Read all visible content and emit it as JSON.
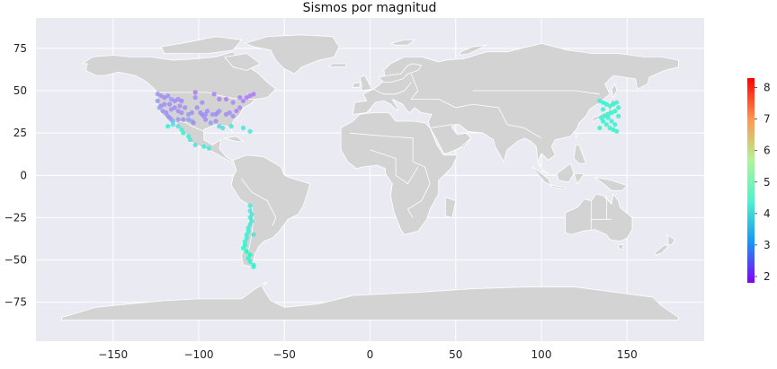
{
  "chart_data": {
    "type": "scatter",
    "title": "Sismos por magnitud",
    "xlabel": "",
    "ylabel": "",
    "xlim": [
      -195,
      195
    ],
    "ylim": [
      -98,
      93
    ],
    "xticks": [
      -150,
      -100,
      -50,
      0,
      50,
      100,
      150
    ],
    "yticks": [
      75,
      50,
      25,
      0,
      -25,
      -50,
      -75
    ],
    "grid": true,
    "background_color": "#eaeaf2",
    "land_color": "#d3d3d3",
    "border_color": "#ffffff",
    "colormap": "rainbow",
    "colorbar": {
      "vmin": 1.8,
      "vmax": 8.3,
      "ticks": [
        2,
        3,
        4,
        5,
        6,
        7,
        8
      ],
      "placement": "right"
    },
    "series": [
      {
        "region": "west-central North America",
        "points": [
          {
            "lon": -124,
            "lat": 48,
            "mag": 3.1
          },
          {
            "lon": -122,
            "lat": 47,
            "mag": 3.0
          },
          {
            "lon": -120,
            "lat": 46,
            "mag": 3.0
          },
          {
            "lon": -118,
            "lat": 47,
            "mag": 3.0
          },
          {
            "lon": -116,
            "lat": 45,
            "mag": 3.1
          },
          {
            "lon": -114,
            "lat": 44,
            "mag": 3.0
          },
          {
            "lon": -112,
            "lat": 45,
            "mag": 3.0
          },
          {
            "lon": -110,
            "lat": 44,
            "mag": 2.9
          },
          {
            "lon": -122,
            "lat": 41,
            "mag": 3.0
          },
          {
            "lon": -121,
            "lat": 38,
            "mag": 3.1
          },
          {
            "lon": -119,
            "lat": 37,
            "mag": 3.0
          },
          {
            "lon": -118,
            "lat": 35,
            "mag": 3.1
          },
          {
            "lon": -117,
            "lat": 34,
            "mag": 3.0
          },
          {
            "lon": -116,
            "lat": 33,
            "mag": 3.2
          },
          {
            "lon": -115,
            "lat": 32,
            "mag": 3.4
          },
          {
            "lon": -116,
            "lat": 39,
            "mag": 3.0
          },
          {
            "lon": -114,
            "lat": 40,
            "mag": 3.0
          },
          {
            "lon": -112,
            "lat": 38,
            "mag": 3.0
          },
          {
            "lon": -111,
            "lat": 41,
            "mag": 3.0
          },
          {
            "lon": -110,
            "lat": 37,
            "mag": 3.0
          },
          {
            "lon": -108,
            "lat": 40,
            "mag": 3.0
          },
          {
            "lon": -106,
            "lat": 36,
            "mag": 3.1
          },
          {
            "lon": -106,
            "lat": 33,
            "mag": 3.2
          },
          {
            "lon": -104,
            "lat": 37,
            "mag": 3.0
          },
          {
            "lon": -104,
            "lat": 32,
            "mag": 3.3
          },
          {
            "lon": -103,
            "lat": 31,
            "mag": 3.0
          },
          {
            "lon": -112,
            "lat": 33,
            "mag": 3.1
          },
          {
            "lon": -109,
            "lat": 33,
            "mag": 3.0
          },
          {
            "lon": -124,
            "lat": 44,
            "mag": 3.1
          },
          {
            "lon": -123,
            "lat": 40,
            "mag": 3.3
          },
          {
            "lon": -120,
            "lat": 42,
            "mag": 3.0
          },
          {
            "lon": -117,
            "lat": 42,
            "mag": 3.0
          }
        ]
      },
      {
        "region": "central and eastern North America",
        "points": [
          {
            "lon": -98,
            "lat": 36,
            "mag": 3.0
          },
          {
            "lon": -97,
            "lat": 35,
            "mag": 3.0
          },
          {
            "lon": -96,
            "lat": 36,
            "mag": 3.1
          },
          {
            "lon": -99,
            "lat": 37,
            "mag": 3.0
          },
          {
            "lon": -96,
            "lat": 33,
            "mag": 3.0
          },
          {
            "lon": -95,
            "lat": 38,
            "mag": 3.0
          },
          {
            "lon": -92,
            "lat": 36,
            "mag": 3.1
          },
          {
            "lon": -90,
            "lat": 36,
            "mag": 3.0
          },
          {
            "lon": -89,
            "lat": 37,
            "mag": 3.0
          },
          {
            "lon": -88,
            "lat": 38,
            "mag": 3.1
          },
          {
            "lon": -84,
            "lat": 36,
            "mag": 3.0
          },
          {
            "lon": -82,
            "lat": 37,
            "mag": 3.0
          },
          {
            "lon": -80,
            "lat": 35,
            "mag": 3.0
          },
          {
            "lon": -78,
            "lat": 38,
            "mag": 2.9
          },
          {
            "lon": -76,
            "lat": 40,
            "mag": 3.0
          },
          {
            "lon": -74,
            "lat": 44,
            "mag": 2.9
          },
          {
            "lon": -72,
            "lat": 46,
            "mag": 2.8
          },
          {
            "lon": -70,
            "lat": 47,
            "mag": 2.8
          },
          {
            "lon": -68,
            "lat": 48,
            "mag": 2.8
          },
          {
            "lon": -76,
            "lat": 46,
            "mag": 2.9
          },
          {
            "lon": -80,
            "lat": 43,
            "mag": 3.0
          },
          {
            "lon": -84,
            "lat": 45,
            "mag": 2.9
          },
          {
            "lon": -88,
            "lat": 45,
            "mag": 2.9
          },
          {
            "lon": -98,
            "lat": 43,
            "mag": 3.0
          },
          {
            "lon": -102,
            "lat": 46,
            "mag": 3.0
          },
          {
            "lon": -101,
            "lat": 40,
            "mag": 3.0
          },
          {
            "lon": -93,
            "lat": 31,
            "mag": 3.2
          },
          {
            "lon": -90,
            "lat": 32,
            "mag": 3.0
          },
          {
            "lon": -102,
            "lat": 49,
            "mag": 2.8
          },
          {
            "lon": -91,
            "lat": 48,
            "mag": 2.9
          }
        ]
      },
      {
        "region": "Mexico and Caribbean",
        "points": [
          {
            "lon": -112,
            "lat": 29,
            "mag": 3.9
          },
          {
            "lon": -110,
            "lat": 27,
            "mag": 4.2
          },
          {
            "lon": -109,
            "lat": 25,
            "mag": 4.5
          },
          {
            "lon": -106,
            "lat": 23,
            "mag": 4.3
          },
          {
            "lon": -105,
            "lat": 21,
            "mag": 4.1
          },
          {
            "lon": -102,
            "lat": 18,
            "mag": 4.0
          },
          {
            "lon": -97,
            "lat": 17,
            "mag": 4.2
          },
          {
            "lon": -94,
            "lat": 16,
            "mag": 4.1
          },
          {
            "lon": -118,
            "lat": 29,
            "mag": 4.4
          },
          {
            "lon": -115,
            "lat": 30,
            "mag": 4.0
          },
          {
            "lon": -86,
            "lat": 28,
            "mag": 4.0
          },
          {
            "lon": -81,
            "lat": 29,
            "mag": 4.1
          },
          {
            "lon": -74,
            "lat": 28,
            "mag": 4.0
          },
          {
            "lon": -70,
            "lat": 26,
            "mag": 4.2
          },
          {
            "lon": -88,
            "lat": 29,
            "mag": 3.8
          }
        ]
      },
      {
        "region": "Chile and Argentina",
        "points": [
          {
            "lon": -70,
            "lat": -18,
            "mag": 4.2
          },
          {
            "lon": -70,
            "lat": -21,
            "mag": 4.1
          },
          {
            "lon": -69,
            "lat": -23,
            "mag": 4.0
          },
          {
            "lon": -70,
            "lat": -25,
            "mag": 4.3
          },
          {
            "lon": -69,
            "lat": -27,
            "mag": 4.2
          },
          {
            "lon": -70,
            "lat": -29,
            "mag": 4.1
          },
          {
            "lon": -71,
            "lat": -31,
            "mag": 4.0
          },
          {
            "lon": -71,
            "lat": -33,
            "mag": 4.4
          },
          {
            "lon": -72,
            "lat": -35,
            "mag": 4.2
          },
          {
            "lon": -72,
            "lat": -37,
            "mag": 4.1
          },
          {
            "lon": -73,
            "lat": -39,
            "mag": 4.3
          },
          {
            "lon": -73,
            "lat": -41,
            "mag": 4.5
          },
          {
            "lon": -74,
            "lat": -43,
            "mag": 4.6
          },
          {
            "lon": -72,
            "lat": -45,
            "mag": 4.7
          },
          {
            "lon": -70,
            "lat": -47,
            "mag": 4.8
          },
          {
            "lon": -71,
            "lat": -49,
            "mag": 4.5
          },
          {
            "lon": -70,
            "lat": -51,
            "mag": 4.4
          },
          {
            "lon": -68,
            "lat": -53,
            "mag": 4.6
          },
          {
            "lon": -68,
            "lat": -54,
            "mag": 4.4
          },
          {
            "lon": -68,
            "lat": -35,
            "mag": 4.0
          }
        ]
      },
      {
        "region": "Japan",
        "points": [
          {
            "lon": 134,
            "lat": 44,
            "mag": 4.2
          },
          {
            "lon": 136,
            "lat": 43,
            "mag": 4.4
          },
          {
            "lon": 138,
            "lat": 42,
            "mag": 4.5
          },
          {
            "lon": 140,
            "lat": 41,
            "mag": 4.3
          },
          {
            "lon": 142,
            "lat": 42,
            "mag": 4.6
          },
          {
            "lon": 144,
            "lat": 43,
            "mag": 4.2
          },
          {
            "lon": 145,
            "lat": 40,
            "mag": 4.4
          },
          {
            "lon": 143,
            "lat": 38,
            "mag": 4.6
          },
          {
            "lon": 141,
            "lat": 37,
            "mag": 4.5
          },
          {
            "lon": 139,
            "lat": 36,
            "mag": 4.3
          },
          {
            "lon": 137,
            "lat": 35,
            "mag": 4.6
          },
          {
            "lon": 135,
            "lat": 34,
            "mag": 4.2
          },
          {
            "lon": 136,
            "lat": 32,
            "mag": 4.5
          },
          {
            "lon": 138,
            "lat": 30,
            "mag": 4.4
          },
          {
            "lon": 140,
            "lat": 28,
            "mag": 4.3
          },
          {
            "lon": 142,
            "lat": 27,
            "mag": 4.6
          },
          {
            "lon": 144,
            "lat": 26,
            "mag": 4.4
          },
          {
            "lon": 143,
            "lat": 30,
            "mag": 4.5
          },
          {
            "lon": 141,
            "lat": 32,
            "mag": 4.2
          },
          {
            "lon": 139,
            "lat": 34,
            "mag": 4.3
          },
          {
            "lon": 145,
            "lat": 35,
            "mag": 4.5
          },
          {
            "lon": 136,
            "lat": 39,
            "mag": 4.2
          },
          {
            "lon": 134,
            "lat": 28,
            "mag": 4.4
          }
        ]
      }
    ]
  }
}
